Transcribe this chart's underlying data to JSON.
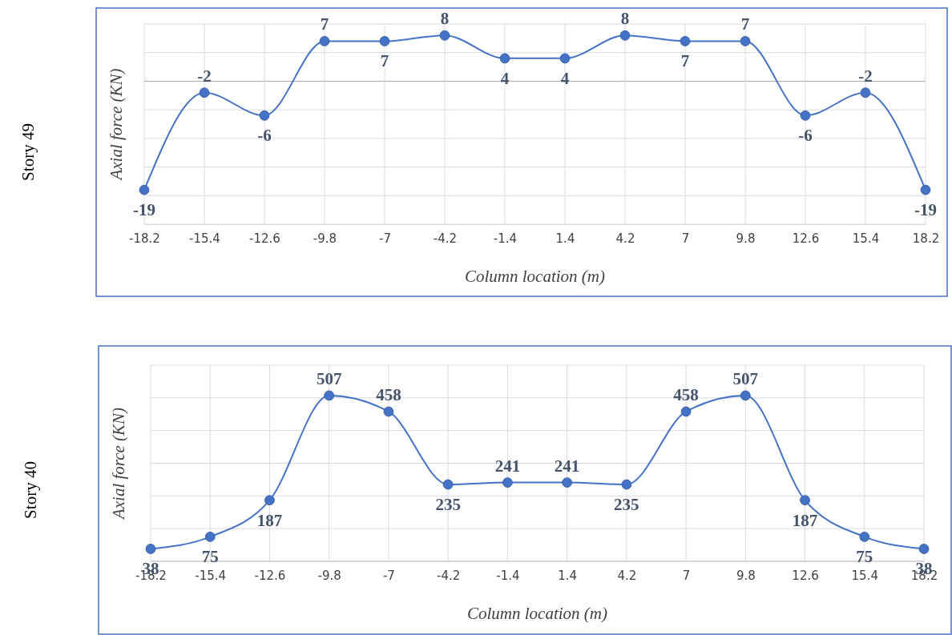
{
  "chart_data": [
    {
      "type": "line",
      "title": "Story 49",
      "xlabel": "Column location (m)",
      "ylabel": "Axial force (KN)",
      "categories": [
        "-18.2",
        "-15.4",
        "-12.6",
        "-9.8",
        "-7",
        "-4.2",
        "-1.4",
        "1.4",
        "4.2",
        "7",
        "9.8",
        "12.6",
        "15.4",
        "18.2"
      ],
      "series": [
        {
          "color": "#4472c4",
          "values": [
            -19,
            -2,
            -6,
            7,
            7,
            8,
            4,
            4,
            8,
            7,
            7,
            -6,
            -2,
            -19
          ]
        }
      ],
      "ylim": [
        -25,
        10
      ],
      "yticks": [
        {
          "value": -25,
          "label": null
        },
        {
          "value": -20,
          "label": null
        },
        {
          "value": -15,
          "label": null
        },
        {
          "value": -10,
          "label": null
        },
        {
          "value": -5,
          "label": null
        },
        {
          "value": 0,
          "label": null
        },
        {
          "value": 5,
          "label": null
        },
        {
          "value": 10,
          "label": null
        }
      ],
      "tick_labels": "x",
      "grid": true,
      "marker": "circle",
      "line_style": "solid",
      "data_labels": true
    },
    {
      "type": "line",
      "title": "Story 40",
      "xlabel": "Column location (m)",
      "ylabel": "Axial force (KN)",
      "categories": [
        "-18.2",
        "-15.4",
        "-12.6",
        "-9.8",
        "-7",
        "-4.2",
        "-1.4",
        "1.4",
        "4.2",
        "7",
        "9.8",
        "12.6",
        "15.4",
        "18.2"
      ],
      "series": [
        {
          "color": "#4472c4",
          "values": [
            38,
            75,
            187,
            507,
            458,
            235,
            241,
            241,
            235,
            458,
            507,
            187,
            75,
            38
          ]
        }
      ],
      "ylim": [
        0,
        600
      ],
      "yticks": [
        {
          "value": 0,
          "label": null
        },
        {
          "value": 100,
          "label": null
        },
        {
          "value": 200,
          "label": null
        },
        {
          "value": 300,
          "label": null
        },
        {
          "value": 400,
          "label": null
        },
        {
          "value": 500,
          "label": null
        },
        {
          "value": 600,
          "label": null
        }
      ],
      "tick_labels": "x",
      "grid": true,
      "marker": "circle",
      "line_style": "solid",
      "data_labels": true
    }
  ]
}
